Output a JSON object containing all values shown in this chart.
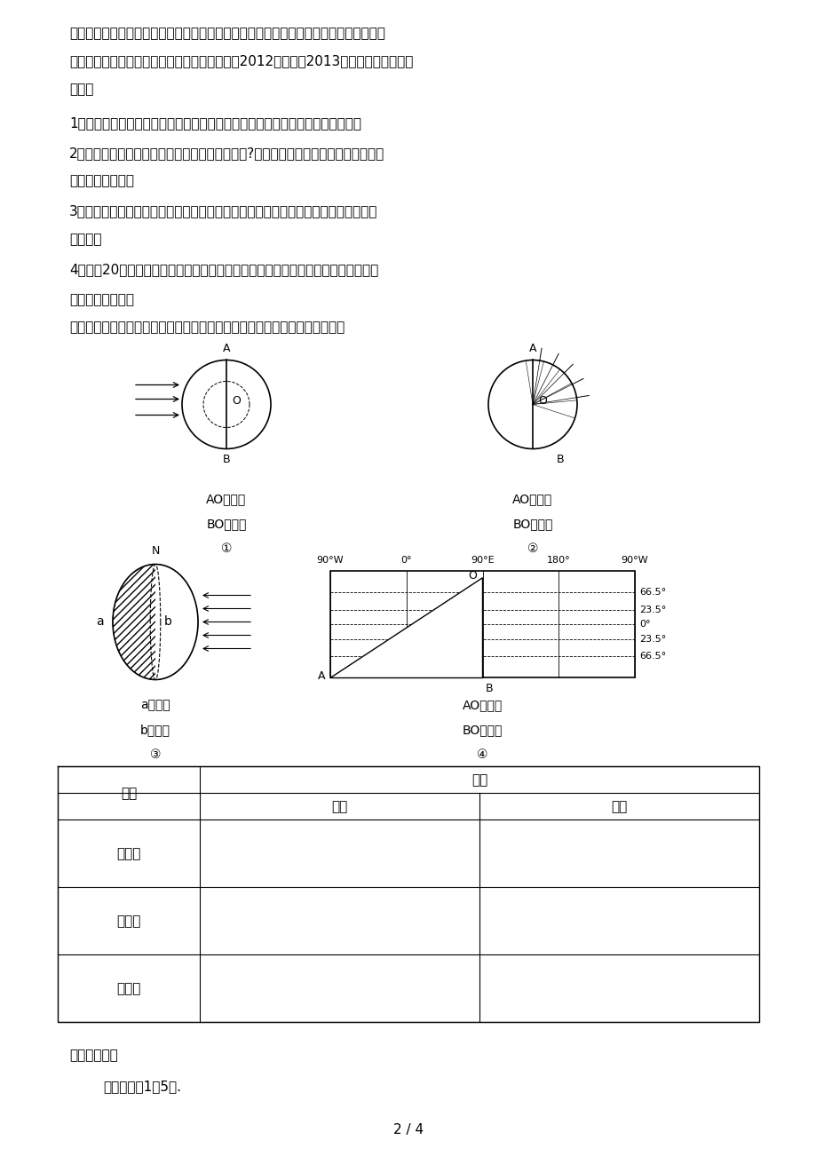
{
  "bg": "#ffffff",
  "para1": "天基地建立在哈萨克斯坦在拜克努尔；继太原、酒泉、西昌三大卫星发射中心后，我国正",
  "para1b": "在海南省文昌市建设航天发射基地，发射场将于2012年建成，2013年具备火箭首次飞行",
  "para1c": "条件。",
  "q1": "1．在地球什么地点能做到「坐地日行八万里」呢？为什么？其线速度约为多少？",
  "q2": "2．在选择发射场时，为什么尽量选择低纬度地区?海南发射基地与我国其他三个基地相",
  "q2b": "比，有哪些优势？",
  "q3": "3．「地球的自转方向从北极上空看是自西向东，从南极上空看是自东向西」的说法是",
  "q3b": "否正确？",
  "q4": "4．今晚20时，某人观测到某恒星位于天顶，明晚该恒星仍位于天顶的时刻是多少？",
  "sec2": "二．晨昏线的判读",
  "sec2b": "地球上昼半球与夜半球的分界线称为晨昏线（圈）。其判读方法如图表所示：",
  "d1l1": "AO为昏线",
  "d1l2": "BO为晨线",
  "d1n": "①",
  "d2l1": "AO为昏线",
  "d2l2": "BO为晨线",
  "d2n": "②",
  "d3l1": "a为晨线",
  "d3l2": "b为昏线",
  "d3n": "③",
  "d4l1": "AO为昏线",
  "d4l2": "BO为晨线",
  "d4n": "④",
  "th0": "方法",
  "th_span": "依据",
  "th1": "晨线",
  "th2": "昏线",
  "tr1": "自转法",
  "tr2": "时间法",
  "tr3": "方位法",
  "footer_bold": "【巩固训练】",
  "footer_txt": "读图，回答1－5题.",
  "pagenum": "2 / 4"
}
